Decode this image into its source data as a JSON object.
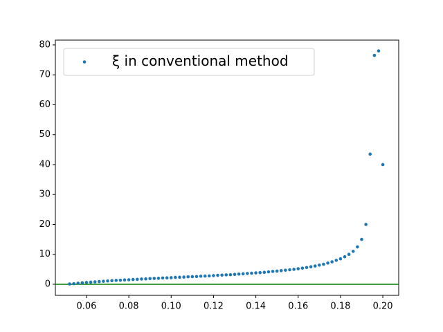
{
  "chart_data": {
    "type": "scatter",
    "series": [
      {
        "name": "ξ in conventional method",
        "color": "#1f77b4",
        "x": [
          0.052,
          0.054,
          0.056,
          0.058,
          0.06,
          0.062,
          0.064,
          0.066,
          0.068,
          0.07,
          0.072,
          0.074,
          0.076,
          0.078,
          0.08,
          0.082,
          0.084,
          0.086,
          0.088,
          0.09,
          0.092,
          0.094,
          0.096,
          0.098,
          0.1,
          0.102,
          0.104,
          0.106,
          0.108,
          0.11,
          0.112,
          0.114,
          0.116,
          0.118,
          0.12,
          0.122,
          0.124,
          0.126,
          0.128,
          0.13,
          0.132,
          0.134,
          0.136,
          0.138,
          0.14,
          0.142,
          0.144,
          0.146,
          0.148,
          0.15,
          0.152,
          0.154,
          0.156,
          0.158,
          0.16,
          0.162,
          0.164,
          0.166,
          0.168,
          0.17,
          0.172,
          0.174,
          0.176,
          0.178,
          0.18,
          0.182,
          0.184,
          0.186,
          0.188,
          0.19,
          0.192,
          0.194,
          0.196,
          0.198,
          0.2
        ],
        "values": [
          0.1,
          0.2,
          0.35,
          0.5,
          0.6,
          0.7,
          0.8,
          0.9,
          1.0,
          1.1,
          1.2,
          1.3,
          1.35,
          1.45,
          1.5,
          1.6,
          1.65,
          1.75,
          1.8,
          1.9,
          1.95,
          2.0,
          2.1,
          2.15,
          2.2,
          2.3,
          2.35,
          2.4,
          2.5,
          2.55,
          2.6,
          2.7,
          2.75,
          2.8,
          2.9,
          3.0,
          3.05,
          3.15,
          3.2,
          3.3,
          3.4,
          3.5,
          3.6,
          3.7,
          3.8,
          3.9,
          4.0,
          4.15,
          4.3,
          4.4,
          4.55,
          4.7,
          4.85,
          5.0,
          5.2,
          5.4,
          5.6,
          5.85,
          6.1,
          6.4,
          6.7,
          7.1,
          7.5,
          8.0,
          8.5,
          9.2,
          10.0,
          11.0,
          12.5,
          15.0,
          20.0,
          43.5,
          76.5,
          78.0,
          40.0
        ]
      }
    ],
    "hline": {
      "y": 0,
      "color": "#008000"
    },
    "xlim": [
      0.0453,
      0.2075
    ],
    "ylim": [
      -3.7,
      81.6
    ],
    "xticks": [
      {
        "value": 0.06,
        "label": "0.06"
      },
      {
        "value": 0.08,
        "label": "0.08"
      },
      {
        "value": 0.1,
        "label": "0.10"
      },
      {
        "value": 0.12,
        "label": "0.12"
      },
      {
        "value": 0.14,
        "label": "0.14"
      },
      {
        "value": 0.16,
        "label": "0.16"
      },
      {
        "value": 0.18,
        "label": "0.18"
      },
      {
        "value": 0.2,
        "label": "0.20"
      }
    ],
    "yticks": [
      0,
      10,
      20,
      30,
      40,
      50,
      60,
      70,
      80
    ],
    "legend": "upper left"
  }
}
